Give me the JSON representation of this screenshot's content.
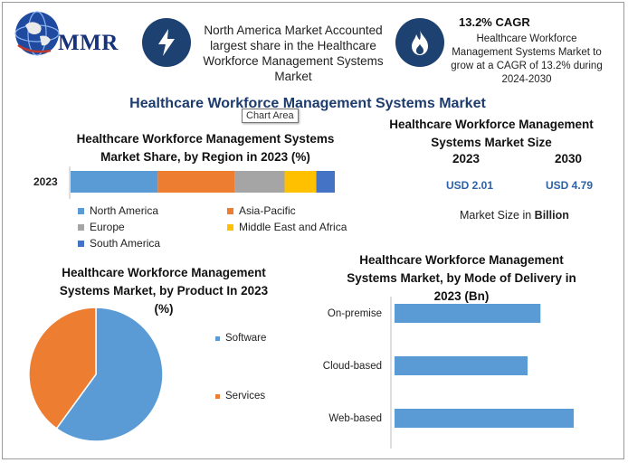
{
  "header": {
    "logo_text": "MMR",
    "info_text": "North America Market Accounted largest share in the Healthcare Workforce Management Systems Market",
    "cagr_title": "13.2% CAGR",
    "cagr_text": "Healthcare Workforce Management Systems Market to grow at a CAGR of 13.2% during 2024-2030",
    "icons": [
      "bolt-icon",
      "flame-icon",
      "globe-icon"
    ]
  },
  "main_title": "Healthcare Workforce Management Systems Market",
  "tooltip": "Chart Area",
  "market_size": {
    "title": "Healthcare Workforce Management Systems Market Size",
    "year_a": "2023",
    "year_b": "2030",
    "value_a": "USD 2.01",
    "value_b": "USD 4.79",
    "unit_prefix": "Market Size in ",
    "unit_bold": "Billion"
  },
  "colors": {
    "north_america": "#5b9bd5",
    "asia_pacific": "#ed7d31",
    "europe": "#a5a5a5",
    "mea": "#ffc000",
    "south_america": "#4472c4",
    "accent": "#1d4170"
  },
  "chart_data": [
    {
      "type": "bar",
      "orientation": "horizontal-stacked",
      "title": "Healthcare Workforce Management Systems Market Share, by Region in 2023 (%)",
      "categories": [
        "2023"
      ],
      "series": [
        {
          "name": "North America",
          "values": [
            33
          ]
        },
        {
          "name": "Asia-Pacific",
          "values": [
            29
          ]
        },
        {
          "name": "Europe",
          "values": [
            19
          ]
        },
        {
          "name": "Middle East and Africa",
          "values": [
            12
          ]
        },
        {
          "name": "South America",
          "values": [
            7
          ]
        }
      ],
      "legend": "bottom"
    },
    {
      "type": "pie",
      "title": "Healthcare Workforce Management Systems Market, by Product In 2023 (%)",
      "categories": [
        "Software",
        "Services"
      ],
      "values": [
        60,
        40
      ],
      "colors": [
        "#5b9bd5",
        "#ed7d31"
      ],
      "legend": "right"
    },
    {
      "type": "bar",
      "orientation": "horizontal",
      "title": "Healthcare Workforce Management Systems Market, by Mode of Delivery in 2023 (Bn)",
      "categories": [
        "On-premise",
        "Cloud-based",
        "Web-based"
      ],
      "values": [
        0.79,
        0.72,
        0.97
      ],
      "xlim": [
        0,
        1.2
      ],
      "color": "#5b9bd5"
    }
  ]
}
